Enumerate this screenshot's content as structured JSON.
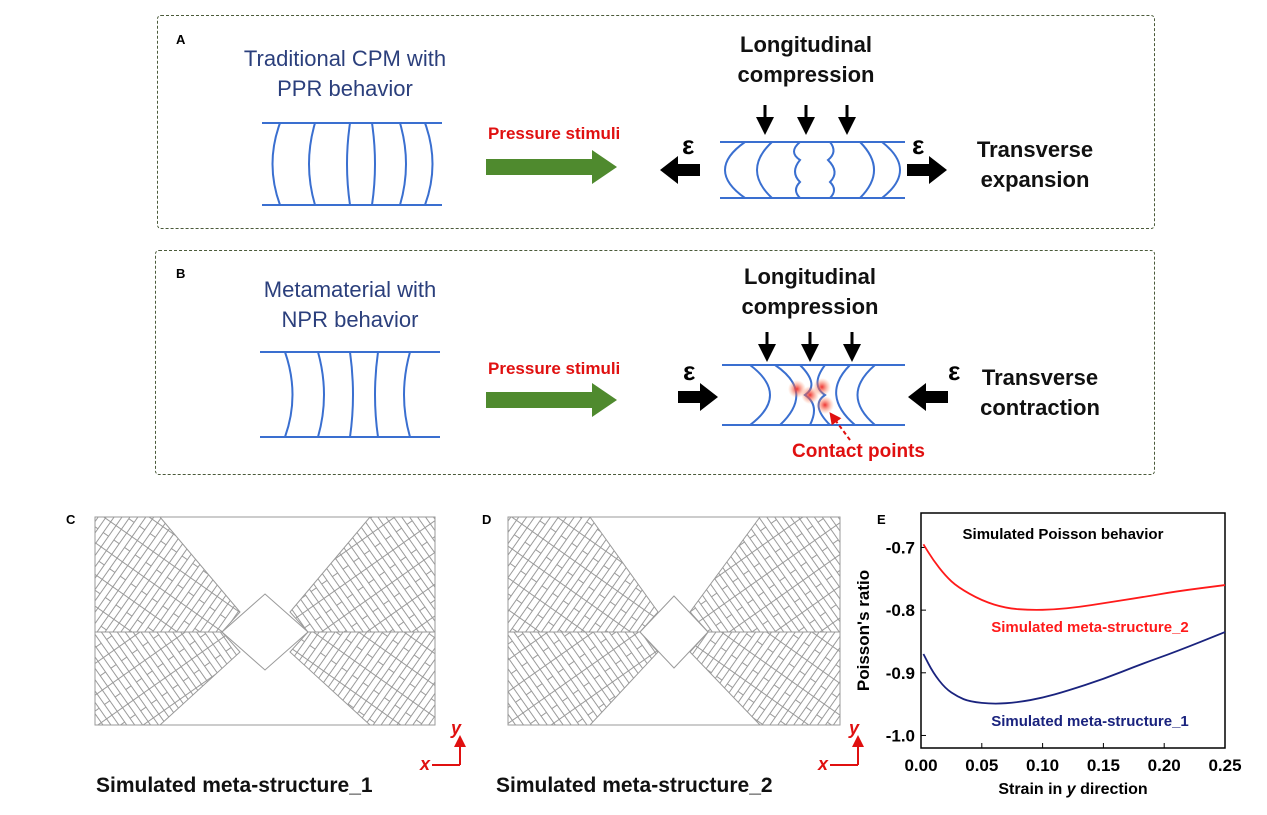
{
  "panel_a": {
    "label": "A",
    "title_line1": "Traditional CPM with",
    "title_line2": "PPR behavior",
    "stimulus": "Pressure stimuli",
    "compression_line1": "Longitudinal",
    "compression_line2": "compression",
    "epsilon": "ε",
    "result_line1": "Transverse",
    "result_line2": "expansion"
  },
  "panel_b": {
    "label": "B",
    "title_line1": "Metamaterial with",
    "title_line2": "NPR behavior",
    "stimulus": "Pressure stimuli",
    "compression_line1": "Longitudinal",
    "compression_line2": "compression",
    "epsilon": "ε",
    "result_line1": "Transverse",
    "result_line2": "contraction",
    "contact": "Contact points"
  },
  "panel_c": {
    "label": "C",
    "caption": "Simulated meta-structure_1",
    "axis_x": "x",
    "axis_y": "y"
  },
  "panel_d": {
    "label": "D",
    "caption": "Simulated meta-structure_2",
    "axis_x": "x",
    "axis_y": "y"
  },
  "panel_e": {
    "label": "E"
  },
  "colors": {
    "blue_line": "#3a6fd0",
    "arrow_green": "#4f8a2e",
    "red": "#e01010",
    "navy": "#1a237e"
  },
  "chart_data": {
    "type": "line",
    "title": "Simulated Poisson behavior",
    "xlabel_prefix": "Strain in ",
    "xlabel_var": "y",
    "xlabel_suffix": " direction",
    "ylabel": "Poisson's ratio",
    "xlim": [
      0,
      0.25
    ],
    "ylim": [
      -1.02,
      -0.645
    ],
    "xticks": [
      "0.00",
      "0.05",
      "0.10",
      "0.15",
      "0.20",
      "0.25"
    ],
    "xtick_values": [
      0,
      0.05,
      0.1,
      0.15,
      0.2,
      0.25
    ],
    "yticks": [
      "-0.7",
      "-0.8",
      "-0.9",
      "-1.0"
    ],
    "ytick_values": [
      -0.7,
      -0.8,
      -0.9,
      -1.0
    ],
    "series": [
      {
        "name": "Simulated meta-structure_2",
        "color": "#ff1a1a",
        "x": [
          0.002,
          0.01,
          0.02,
          0.03,
          0.05,
          0.07,
          0.09,
          0.11,
          0.13,
          0.15,
          0.18,
          0.21,
          0.25
        ],
        "y": [
          -0.695,
          -0.72,
          -0.745,
          -0.763,
          -0.785,
          -0.797,
          -0.8,
          -0.799,
          -0.795,
          -0.789,
          -0.78,
          -0.77,
          -0.76
        ]
      },
      {
        "name": "Simulated meta-structure_1",
        "color": "#1a237e",
        "x": [
          0.002,
          0.01,
          0.02,
          0.03,
          0.04,
          0.06,
          0.08,
          0.1,
          0.12,
          0.15,
          0.18,
          0.21,
          0.25
        ],
        "y": [
          -0.87,
          -0.9,
          -0.925,
          -0.938,
          -0.946,
          -0.95,
          -0.947,
          -0.94,
          -0.929,
          -0.91,
          -0.887,
          -0.866,
          -0.835
        ]
      }
    ]
  }
}
